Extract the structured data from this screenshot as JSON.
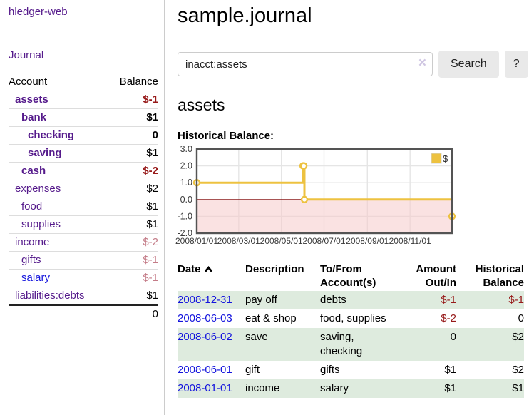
{
  "colors": {
    "purple": "#551a8b",
    "blue": "#1414dd",
    "red": "#971a1a",
    "red_muted": "#c47c88",
    "row_green": "#deebde",
    "row_border": "#dddddd",
    "border_gray": "#cccccc",
    "button_gray": "#e9e9e9",
    "clear_x": "#cfc6e2"
  },
  "sidebar": {
    "brand": "hledger-web",
    "journal_label": "Journal",
    "accounts_table": {
      "account_header": "Account",
      "balance_header": "Balance",
      "rows": [
        {
          "name": "assets",
          "balance": "$-1",
          "indent": 1,
          "bold": true,
          "link_color": "purple",
          "balance_class": "neg"
        },
        {
          "name": "bank",
          "balance": "$1",
          "indent": 2,
          "bold": true,
          "link_color": "purple",
          "balance_class": ""
        },
        {
          "name": "checking",
          "balance": "0",
          "indent": 3,
          "bold": true,
          "link_color": "purple",
          "balance_class": ""
        },
        {
          "name": "saving",
          "balance": "$1",
          "indent": 3,
          "bold": true,
          "link_color": "purple",
          "balance_class": ""
        },
        {
          "name": "cash",
          "balance": "$-2",
          "indent": 2,
          "bold": true,
          "link_color": "purple",
          "balance_class": "neg"
        },
        {
          "name": "expenses",
          "balance": "$2",
          "indent": 1,
          "bold": false,
          "link_color": "purple",
          "balance_class": ""
        },
        {
          "name": "food",
          "balance": "$1",
          "indent": 2,
          "bold": false,
          "link_color": "purple",
          "balance_class": ""
        },
        {
          "name": "supplies",
          "balance": "$1",
          "indent": 2,
          "bold": false,
          "link_color": "purple",
          "balance_class": ""
        },
        {
          "name": "income",
          "balance": "$-2",
          "indent": 1,
          "bold": false,
          "link_color": "purple",
          "balance_class": "negmuted"
        },
        {
          "name": "gifts",
          "balance": "$-1",
          "indent": 2,
          "bold": false,
          "link_color": "purple",
          "balance_class": "negmuted"
        },
        {
          "name": "salary",
          "balance": "$-1",
          "indent": 2,
          "bold": false,
          "link_color": "blue",
          "balance_class": "negmuted"
        },
        {
          "name": "liabilities:debts",
          "balance": "$1",
          "indent": 1,
          "bold": false,
          "link_color": "purple",
          "balance_class": ""
        }
      ],
      "total": "0"
    }
  },
  "main": {
    "title": "sample.journal",
    "search": {
      "value": "inacct:assets",
      "clear_icon": "×",
      "button_label": "Search",
      "help_label": "?"
    },
    "account_heading": "assets",
    "chart_label": "Historical Balance:",
    "chart_data": {
      "type": "line",
      "style": "steps",
      "title": "Historical Balance",
      "series": [
        {
          "name": "$",
          "color": "#edc240",
          "points": [
            [
              "2008-01-01",
              1
            ],
            [
              "2008-06-01",
              2
            ],
            [
              "2008-06-02",
              2
            ],
            [
              "2008-06-03",
              0
            ],
            [
              "2008-12-31",
              -1
            ]
          ]
        }
      ],
      "xlim": [
        "2008-01-01",
        "2008-12-31"
      ],
      "ylim": [
        -2,
        3
      ],
      "x_ticks": [
        "2008/01/01",
        "2008/03/01",
        "2008/05/01",
        "2008/07/01",
        "2008/09/01",
        "2008/11/01"
      ],
      "y_ticks": [
        "3.0",
        "2.0",
        "1.0",
        "0.0",
        "-1.0",
        "-2.0"
      ],
      "grid": true,
      "grid_color": "#e5e5e5",
      "plot_border_color": "#545454",
      "tick_label_color": "#3a3a3a",
      "negative_region_color": "#f6caca",
      "zero_line_color": "#8b1a1a",
      "legend": {
        "label": "$",
        "swatch_color": "#edc240",
        "position": "top-right"
      }
    },
    "register": {
      "headers": [
        {
          "lines": [
            "Date"
          ],
          "align": "left",
          "sortable": true
        },
        {
          "lines": [
            "Description"
          ],
          "align": "left"
        },
        {
          "lines": [
            "To/From",
            "Account(s)"
          ],
          "align": "left"
        },
        {
          "lines": [
            "Amount",
            "Out/In"
          ],
          "align": "right"
        },
        {
          "lines": [
            "Historical",
            "Balance"
          ],
          "align": "right"
        }
      ],
      "rows": [
        {
          "date": "2008-12-31",
          "description": "pay off",
          "accounts": "debts",
          "amount": "$-1",
          "amount_neg": true,
          "balance": "$-1",
          "balance_neg": true
        },
        {
          "date": "2008-06-03",
          "description": "eat & shop",
          "accounts": "food, supplies",
          "amount": "$-2",
          "amount_neg": true,
          "balance": "0",
          "balance_neg": false
        },
        {
          "date": "2008-06-02",
          "description": "save",
          "accounts": "saving, checking",
          "amount": "0",
          "amount_neg": false,
          "balance": "$2",
          "balance_neg": false
        },
        {
          "date": "2008-06-01",
          "description": "gift",
          "accounts": "gifts",
          "amount": "$1",
          "amount_neg": false,
          "balance": "$2",
          "balance_neg": false
        },
        {
          "date": "2008-01-01",
          "description": "income",
          "accounts": "salary",
          "amount": "$1",
          "amount_neg": false,
          "balance": "$1",
          "balance_neg": false
        }
      ]
    }
  }
}
